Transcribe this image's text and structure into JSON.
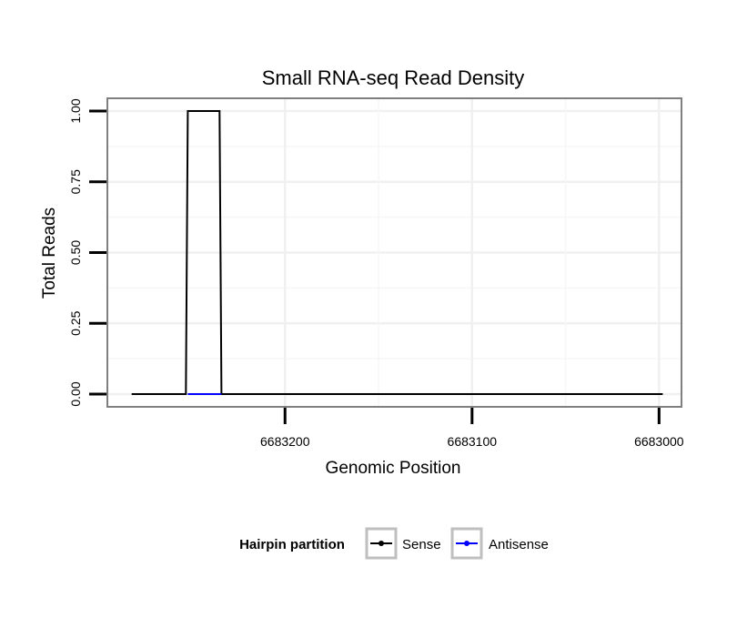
{
  "chart_data": {
    "type": "line",
    "title": "Small RNA-seq Read Density",
    "xlabel": "Genomic Position",
    "ylabel": "Total Reads",
    "xlim": [
      6683295,
      6682988
    ],
    "ylim": [
      -0.045,
      1.045
    ],
    "x_reversed": true,
    "x_ticks": [
      6683200,
      6683100,
      6683000
    ],
    "x_tick_labels": [
      "6683200",
      "6683100",
      "6683000"
    ],
    "y_ticks": [
      0.0,
      0.25,
      0.5,
      0.75,
      1.0
    ],
    "y_tick_labels": [
      "0.00",
      "0.25",
      "0.50",
      "0.75",
      "1.00"
    ],
    "grid": true,
    "legend": {
      "title": "Hairpin partition",
      "position": "bottom",
      "entries": [
        "Sense",
        "Antisense"
      ]
    },
    "series": [
      {
        "name": "Sense",
        "color": "#000000",
        "x": [
          6683282,
          6683253,
          6683252,
          6683235,
          6683234,
          6683204,
          6683200,
          6683150,
          6683100,
          6683050,
          6683000,
          6682998
        ],
        "y": [
          0,
          0,
          1,
          1,
          0,
          0,
          0,
          0,
          0,
          0,
          0,
          0
        ]
      },
      {
        "name": "Antisense",
        "color": "#0000ff",
        "x": [
          6683252,
          6683234
        ],
        "y": [
          0,
          0
        ]
      }
    ]
  }
}
